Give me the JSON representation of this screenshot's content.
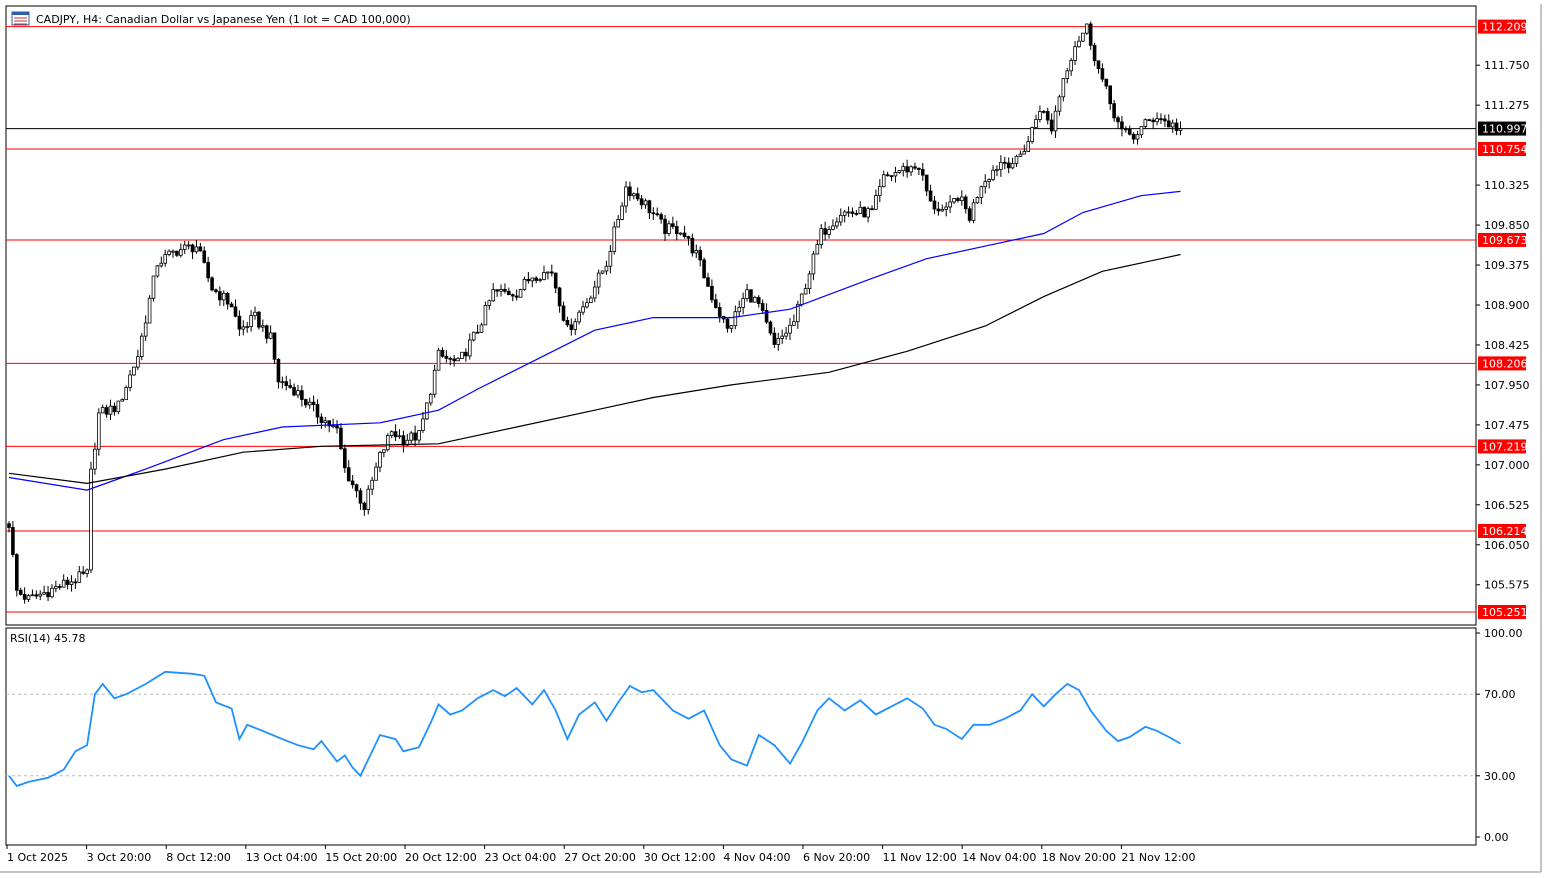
{
  "header": {
    "title": "CADJPY, H4:  Canadian Dollar vs Japanese Yen (1 lot = CAD 100,000)",
    "icon": "chart-window-icon"
  },
  "chart_data": [
    {
      "type": "candlestick",
      "symbol": "CADJPY",
      "timeframe": "H4",
      "ylim": [
        105.1,
        112.38
      ],
      "grid": false,
      "y_ticks": [
        "111.750",
        "111.275",
        "110.325",
        "109.850",
        "109.375",
        "108.900",
        "108.425",
        "107.950",
        "107.475",
        "107.000",
        "106.525",
        "106.050",
        "105.575"
      ],
      "x_ticks": [
        "1 Oct 2025",
        "3 Oct 20:00",
        "8 Oct 12:00",
        "13 Oct 04:00",
        "15 Oct 20:00",
        "20 Oct 12:00",
        "23 Oct 04:00",
        "27 Oct 20:00",
        "30 Oct 12:00",
        "4 Nov 04:00",
        "6 Nov 20:00",
        "11 Nov 12:00",
        "14 Nov 04:00",
        "18 Nov 20:00",
        "21 Nov 12:00"
      ],
      "current_price": {
        "value": 110.997,
        "label": "110.997",
        "color": "#000000"
      },
      "horizontal_levels": [
        {
          "value": 112.209,
          "label": "112.209",
          "color": "#ff0000"
        },
        {
          "value": 110.754,
          "label": "110.754",
          "color": "#ff0000"
        },
        {
          "value": 109.673,
          "label": "109.673",
          "color": "#ff0000"
        },
        {
          "value": 108.206,
          "label": "108.206",
          "color": "#ff0000"
        },
        {
          "value": 107.219,
          "label": "107.219",
          "color": "#ff0000"
        },
        {
          "value": 106.214,
          "label": "106.214",
          "color": "#ff0000"
        },
        {
          "value": 105.251,
          "label": "105.251",
          "color": "#ff0000"
        }
      ],
      "price_path": [
        [
          0,
          106.3
        ],
        [
          2,
          105.5
        ],
        [
          5,
          105.4
        ],
        [
          15,
          105.6
        ],
        [
          20,
          105.7
        ],
        [
          21,
          106.9
        ],
        [
          23,
          107.6
        ],
        [
          28,
          107.7
        ],
        [
          33,
          108.3
        ],
        [
          38,
          109.4
        ],
        [
          43,
          109.55
        ],
        [
          48,
          109.6
        ],
        [
          52,
          109.1
        ],
        [
          57,
          108.9
        ],
        [
          59,
          108.6
        ],
        [
          63,
          108.75
        ],
        [
          67,
          108.5
        ],
        [
          69,
          108.0
        ],
        [
          73,
          107.9
        ],
        [
          79,
          107.6
        ],
        [
          84,
          107.4
        ],
        [
          86,
          106.95
        ],
        [
          91,
          106.5
        ],
        [
          95,
          107.1
        ],
        [
          98,
          107.4
        ],
        [
          101,
          107.3
        ],
        [
          105,
          107.35
        ],
        [
          107,
          107.7
        ],
        [
          110,
          108.3
        ],
        [
          115,
          108.2
        ],
        [
          120,
          108.6
        ],
        [
          124,
          109.05
        ],
        [
          130,
          109.05
        ],
        [
          134,
          109.25
        ],
        [
          139,
          109.3
        ],
        [
          143,
          108.6
        ],
        [
          148,
          108.95
        ],
        [
          153,
          109.4
        ],
        [
          158,
          110.3
        ],
        [
          163,
          110.1
        ],
        [
          168,
          109.8
        ],
        [
          172,
          109.8
        ],
        [
          176,
          109.5
        ],
        [
          180,
          109.0
        ],
        [
          184,
          108.6
        ],
        [
          189,
          109.05
        ],
        [
          192,
          108.9
        ],
        [
          196,
          108.4
        ],
        [
          201,
          108.7
        ],
        [
          205,
          109.3
        ],
        [
          208,
          109.75
        ],
        [
          213,
          110.0
        ],
        [
          221,
          110.0
        ],
        [
          224,
          110.4
        ],
        [
          228,
          110.5
        ],
        [
          233,
          110.55
        ],
        [
          236,
          110.1
        ],
        [
          240,
          110.0
        ],
        [
          243,
          110.2
        ],
        [
          246,
          109.95
        ],
        [
          249,
          110.35
        ],
        [
          254,
          110.6
        ],
        [
          258,
          110.6
        ],
        [
          261,
          110.85
        ],
        [
          264,
          111.25
        ],
        [
          267,
          111.0
        ],
        [
          270,
          111.6
        ],
        [
          273,
          112.0
        ],
        [
          276,
          112.2
        ],
        [
          279,
          111.7
        ],
        [
          282,
          111.3
        ],
        [
          285,
          110.95
        ],
        [
          288,
          110.9
        ],
        [
          291,
          111.05
        ],
        [
          294,
          111.15
        ],
        [
          297,
          111.05
        ],
        [
          300,
          110.997
        ]
      ],
      "last_bar_index": 300,
      "moving_averages": [
        {
          "color": "#0000ff",
          "points": [
            [
              0,
              106.85
            ],
            [
              20,
              106.7
            ],
            [
              35,
              106.95
            ],
            [
              55,
              107.3
            ],
            [
              70,
              107.45
            ],
            [
              95,
              107.5
            ],
            [
              110,
              107.65
            ],
            [
              120,
              107.9
            ],
            [
              135,
              108.25
            ],
            [
              150,
              108.6
            ],
            [
              165,
              108.75
            ],
            [
              185,
              108.75
            ],
            [
              200,
              108.85
            ],
            [
              220,
              109.2
            ],
            [
              235,
              109.45
            ],
            [
              250,
              109.6
            ],
            [
              265,
              109.75
            ],
            [
              275,
              110.0
            ],
            [
              290,
              110.2
            ],
            [
              300,
              110.25
            ]
          ]
        },
        {
          "color": "#000000",
          "points": [
            [
              0,
              106.9
            ],
            [
              20,
              106.78
            ],
            [
              40,
              106.95
            ],
            [
              60,
              107.15
            ],
            [
              80,
              107.22
            ],
            [
              110,
              107.25
            ],
            [
              130,
              107.45
            ],
            [
              150,
              107.65
            ],
            [
              165,
              107.8
            ],
            [
              185,
              107.95
            ],
            [
              210,
              108.1
            ],
            [
              230,
              108.35
            ],
            [
              250,
              108.65
            ],
            [
              265,
              109.0
            ],
            [
              280,
              109.3
            ],
            [
              300,
              109.5
            ]
          ]
        }
      ]
    },
    {
      "type": "line",
      "name": "RSI(14)",
      "label": "RSI(14) 45.78",
      "ylim": [
        0,
        100
      ],
      "y_ticks": [
        "100.00",
        "70.00",
        "30.00",
        "0.00"
      ],
      "levels": [
        70,
        30
      ],
      "color": "#1e90ff",
      "points": [
        [
          0,
          30
        ],
        [
          2,
          25
        ],
        [
          5,
          27
        ],
        [
          10,
          29
        ],
        [
          14,
          33
        ],
        [
          17,
          42
        ],
        [
          20,
          45
        ],
        [
          22,
          70
        ],
        [
          24,
          75
        ],
        [
          27,
          68
        ],
        [
          30,
          70
        ],
        [
          35,
          75
        ],
        [
          40,
          81
        ],
        [
          47,
          80
        ],
        [
          50,
          79
        ],
        [
          53,
          66
        ],
        [
          57,
          63
        ],
        [
          59,
          48
        ],
        [
          61,
          55
        ],
        [
          65,
          52
        ],
        [
          70,
          48
        ],
        [
          74,
          45
        ],
        [
          78,
          43
        ],
        [
          80,
          47
        ],
        [
          84,
          37
        ],
        [
          86,
          40
        ],
        [
          88,
          34
        ],
        [
          90,
          30
        ],
        [
          95,
          50
        ],
        [
          99,
          48
        ],
        [
          101,
          42
        ],
        [
          105,
          44
        ],
        [
          108,
          56
        ],
        [
          110,
          65
        ],
        [
          113,
          60
        ],
        [
          116,
          62
        ],
        [
          120,
          68
        ],
        [
          124,
          72
        ],
        [
          127,
          69
        ],
        [
          130,
          73
        ],
        [
          134,
          65
        ],
        [
          137,
          72
        ],
        [
          140,
          62
        ],
        [
          143,
          48
        ],
        [
          146,
          60
        ],
        [
          150,
          66
        ],
        [
          153,
          57
        ],
        [
          156,
          66
        ],
        [
          159,
          74
        ],
        [
          162,
          71
        ],
        [
          165,
          72
        ],
        [
          170,
          62
        ],
        [
          174,
          58
        ],
        [
          178,
          62
        ],
        [
          182,
          45
        ],
        [
          185,
          38
        ],
        [
          189,
          35
        ],
        [
          192,
          50
        ],
        [
          196,
          45
        ],
        [
          200,
          36
        ],
        [
          203,
          46
        ],
        [
          207,
          62
        ],
        [
          210,
          68
        ],
        [
          214,
          62
        ],
        [
          218,
          67
        ],
        [
          222,
          60
        ],
        [
          226,
          64
        ],
        [
          230,
          68
        ],
        [
          234,
          63
        ],
        [
          237,
          55
        ],
        [
          240,
          53
        ],
        [
          244,
          48
        ],
        [
          247,
          55
        ],
        [
          251,
          55
        ],
        [
          255,
          58
        ],
        [
          259,
          62
        ],
        [
          262,
          70
        ],
        [
          265,
          64
        ],
        [
          268,
          70
        ],
        [
          271,
          75
        ],
        [
          274,
          72
        ],
        [
          277,
          62
        ],
        [
          281,
          52
        ],
        [
          284,
          47
        ],
        [
          287,
          49
        ],
        [
          291,
          54
        ],
        [
          294,
          52
        ],
        [
          297,
          49
        ],
        [
          300,
          45.78
        ]
      ]
    }
  ]
}
